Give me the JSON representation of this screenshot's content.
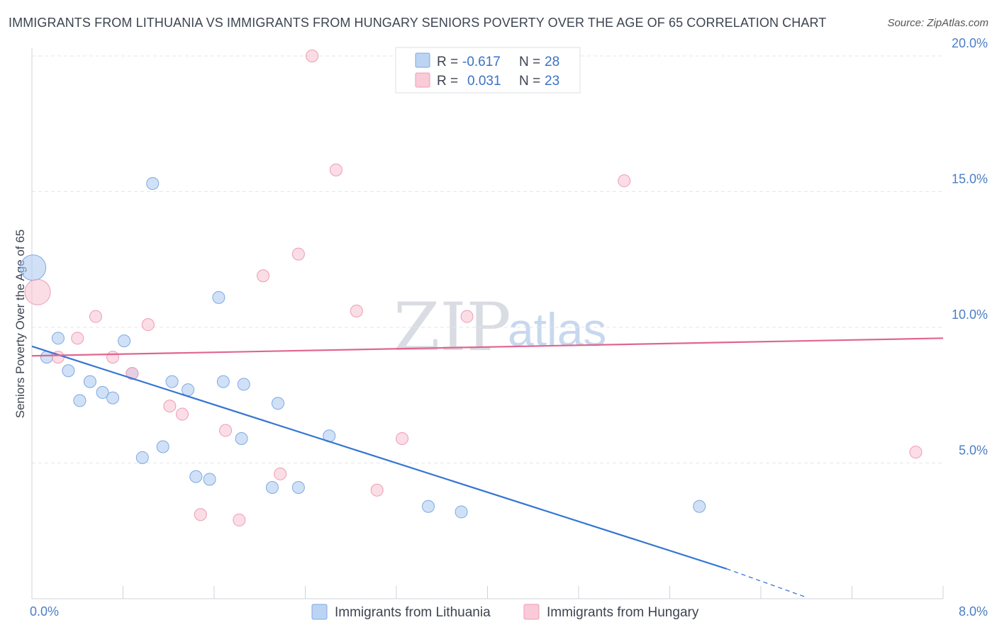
{
  "header": {
    "title": "IMMIGRANTS FROM LITHUANIA VS IMMIGRANTS FROM HUNGARY SENIORS POVERTY OVER THE AGE OF 65 CORRELATION CHART",
    "source": "Source: ZipAtlas.com"
  },
  "watermark": {
    "zip": "ZIP",
    "atlas": "atlas"
  },
  "legend_top": {
    "rows": [
      {
        "r_label": "R =",
        "r_value": "-0.617",
        "n_label": "N =",
        "n_value": "28"
      },
      {
        "r_label": "R =",
        "r_value": "0.031",
        "n_label": "N =",
        "n_value": "23"
      }
    ]
  },
  "chart_data": {
    "type": "scatter",
    "title": "IMMIGRANTS FROM LITHUANIA VS IMMIGRANTS FROM HUNGARY SENIORS POVERTY OVER THE AGE OF 65 CORRELATION CHART",
    "xlabel": "",
    "ylabel": "Seniors Poverty Over the Age of 65",
    "xlim": [
      0,
      8
    ],
    "ylim": [
      0,
      20.5
    ],
    "x_tick_labels": [
      {
        "value": 0,
        "label": "0.0%"
      },
      {
        "value": 8,
        "label": "8.0%"
      }
    ],
    "y_tick_labels": [
      {
        "value": 5,
        "label": "5.0%"
      },
      {
        "value": 10,
        "label": "10.0%"
      },
      {
        "value": 15,
        "label": "15.0%"
      },
      {
        "value": 20,
        "label": "20.0%"
      }
    ],
    "series": [
      {
        "name": "Immigrants from Lithuania",
        "color": "#a9c8f0",
        "stroke": "#7ea9e0",
        "trend_color": "#3575d3",
        "trend": {
          "x1": 0,
          "y1": 9.3,
          "x2": 6.1,
          "y2": 1.1,
          "dash_to_x": 6.8,
          "dash_to_y": 0.05
        },
        "points": [
          {
            "x": 0.01,
            "y": 12.2,
            "big": true
          },
          {
            "x": 0.13,
            "y": 8.9
          },
          {
            "x": 0.23,
            "y": 9.6
          },
          {
            "x": 0.32,
            "y": 8.4
          },
          {
            "x": 0.42,
            "y": 7.3
          },
          {
            "x": 0.51,
            "y": 8.0
          },
          {
            "x": 0.62,
            "y": 7.6
          },
          {
            "x": 0.71,
            "y": 7.4
          },
          {
            "x": 0.81,
            "y": 9.5
          },
          {
            "x": 0.88,
            "y": 8.3
          },
          {
            "x": 0.97,
            "y": 5.2
          },
          {
            "x": 1.06,
            "y": 15.3
          },
          {
            "x": 1.15,
            "y": 5.6
          },
          {
            "x": 1.23,
            "y": 8.0
          },
          {
            "x": 1.37,
            "y": 7.7
          },
          {
            "x": 1.44,
            "y": 4.5
          },
          {
            "x": 1.56,
            "y": 4.4
          },
          {
            "x": 1.64,
            "y": 11.1
          },
          {
            "x": 1.68,
            "y": 8.0
          },
          {
            "x": 1.84,
            "y": 5.9
          },
          {
            "x": 1.86,
            "y": 7.9
          },
          {
            "x": 2.11,
            "y": 4.1
          },
          {
            "x": 2.16,
            "y": 7.2
          },
          {
            "x": 2.34,
            "y": 4.1
          },
          {
            "x": 2.61,
            "y": 6.0
          },
          {
            "x": 3.48,
            "y": 3.4
          },
          {
            "x": 3.77,
            "y": 3.2
          },
          {
            "x": 5.86,
            "y": 3.4
          }
        ]
      },
      {
        "name": "Immigrants from Hungary",
        "color": "#f7c1d1",
        "stroke": "#ee9bb5",
        "trend_color": "#e0668e",
        "trend": {
          "x1": 0,
          "y1": 8.95,
          "x2": 8,
          "y2": 9.6
        },
        "points": [
          {
            "x": 0.05,
            "y": 11.3,
            "big": true
          },
          {
            "x": 0.23,
            "y": 8.9
          },
          {
            "x": 0.4,
            "y": 9.6
          },
          {
            "x": 0.56,
            "y": 10.4
          },
          {
            "x": 0.71,
            "y": 8.9
          },
          {
            "x": 0.88,
            "y": 8.3
          },
          {
            "x": 1.02,
            "y": 10.1
          },
          {
            "x": 1.21,
            "y": 7.1
          },
          {
            "x": 1.32,
            "y": 6.8
          },
          {
            "x": 1.48,
            "y": 3.1
          },
          {
            "x": 1.7,
            "y": 6.2
          },
          {
            "x": 1.82,
            "y": 2.9
          },
          {
            "x": 2.03,
            "y": 11.9
          },
          {
            "x": 2.18,
            "y": 4.6
          },
          {
            "x": 2.34,
            "y": 12.7
          },
          {
            "x": 2.46,
            "y": 20.0
          },
          {
            "x": 2.67,
            "y": 15.8
          },
          {
            "x": 2.85,
            "y": 10.6
          },
          {
            "x": 3.03,
            "y": 4.0
          },
          {
            "x": 3.25,
            "y": 5.9
          },
          {
            "x": 3.82,
            "y": 10.4
          },
          {
            "x": 5.2,
            "y": 15.4
          },
          {
            "x": 7.76,
            "y": 5.4
          }
        ]
      }
    ]
  }
}
